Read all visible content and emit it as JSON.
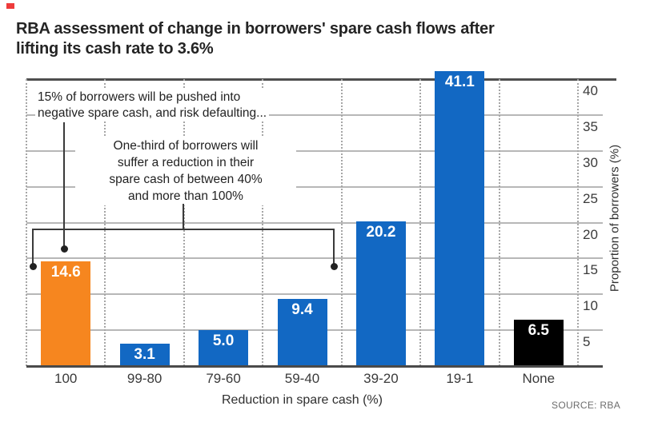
{
  "brand": {
    "mark_color": "#ee3b3b"
  },
  "header": {
    "title_line1": "RBA assessment of change in borrowers' spare cash flows after",
    "title_line2": "lifting its cash rate to 3.6%"
  },
  "chart_data": {
    "type": "bar",
    "title": "RBA assessment of change in borrowers' spare cash flows after lifting its cash rate to 3.6%",
    "categories": [
      "100",
      "99-80",
      "79-60",
      "59-40",
      "39-20",
      "19-1",
      "None"
    ],
    "values": [
      14.6,
      3.1,
      5.0,
      9.4,
      20.2,
      41.1,
      6.5
    ],
    "bar_colors": [
      "#f6861f",
      "#1268c3",
      "#1268c3",
      "#1268c3",
      "#1268c3",
      "#1268c3",
      "#000000"
    ],
    "value_label_color": "#ffffff",
    "xlabel": "Reduction in spare cash (%)",
    "ylabel": "Proportion of borrowers (%)",
    "yticks": [
      5,
      10,
      15,
      20,
      25,
      30,
      35,
      40
    ],
    "ylim": [
      0,
      40
    ],
    "grid": "horizontal solid lines + vertical dotted category separators",
    "legend": "none",
    "annotations": [
      {
        "id": "default-risk",
        "lines": [
          "15% of borrowers will be pushed into",
          "negative spare cash, and risk defaulting..."
        ]
      },
      {
        "id": "one-third-reduction",
        "lines": [
          "One-third of borrowers will",
          "suffer a reduction in their",
          "spare cash of between 40%",
          "and more than 100%"
        ]
      }
    ],
    "source": "SOURCE: RBA"
  }
}
